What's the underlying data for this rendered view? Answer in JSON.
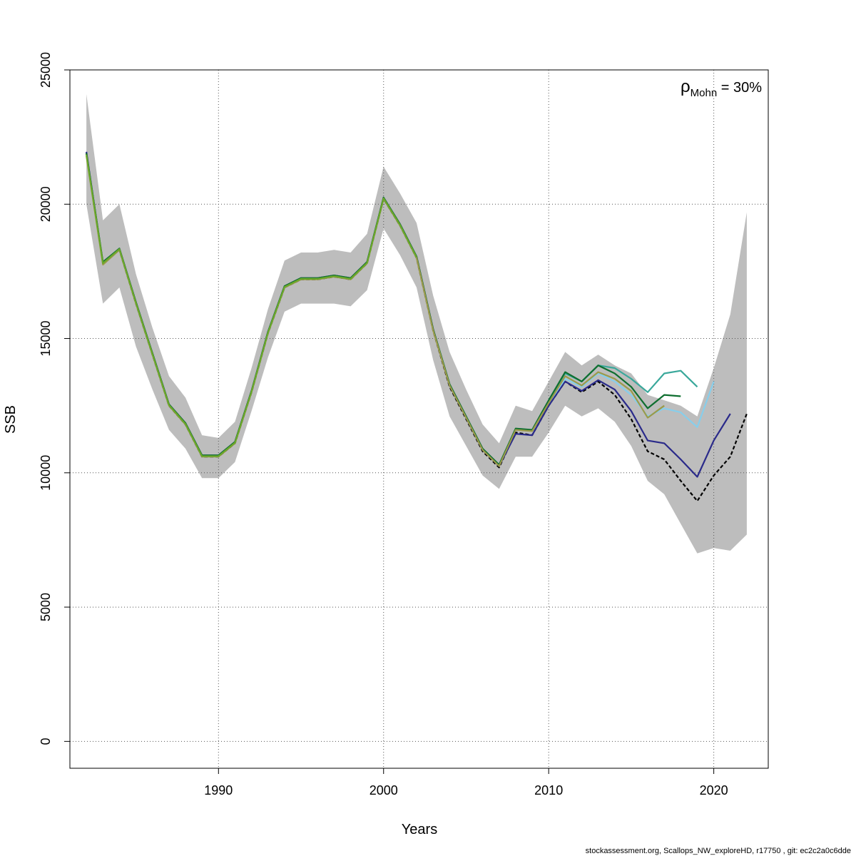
{
  "chart_data": {
    "type": "line",
    "title": "",
    "xlabel": "Years",
    "ylabel": "SSB",
    "xlim": [
      1981.0,
      2023.3
    ],
    "ylim": [
      -1000,
      25000
    ],
    "x_ticks": [
      1990,
      2000,
      2010,
      2020
    ],
    "y_ticks": [
      0,
      5000,
      10000,
      15000,
      20000,
      25000
    ],
    "grid": true,
    "annotation": {
      "symbol": "ρ",
      "subscript": "Mohn",
      "text": " = 30%",
      "placement": "top-right"
    },
    "confidence_band": {
      "years": [
        1982,
        1983,
        1984,
        1985,
        1986,
        1987,
        1988,
        1989,
        1990,
        1991,
        1992,
        1993,
        1994,
        1995,
        1996,
        1997,
        1998,
        1999,
        2000,
        2001,
        2002,
        2003,
        2004,
        2005,
        2006,
        2007,
        2008,
        2009,
        2010,
        2011,
        2012,
        2013,
        2014,
        2015,
        2016,
        2017,
        2018,
        2019,
        2020,
        2021,
        2022
      ],
      "lower": [
        20000,
        16300,
        16900,
        14700,
        13100,
        11600,
        10900,
        9800,
        9800,
        10400,
        12300,
        14300,
        16000,
        16300,
        16300,
        16300,
        16200,
        16800,
        19100,
        18100,
        16900,
        14200,
        12100,
        11000,
        9900,
        9400,
        10600,
        10600,
        11500,
        12500,
        12100,
        12400,
        11900,
        11000,
        9700,
        9200,
        8100,
        7000,
        7200,
        7100,
        7700
      ],
      "upper": [
        24100,
        19400,
        20000,
        17400,
        15400,
        13600,
        12800,
        11400,
        11300,
        11900,
        13900,
        16100,
        17900,
        18200,
        18200,
        18300,
        18200,
        18900,
        21400,
        20400,
        19300,
        16600,
        14500,
        13100,
        11800,
        11100,
        12500,
        12300,
        13400,
        14500,
        14000,
        14400,
        14000,
        13700,
        12900,
        12700,
        12500,
        12100,
        13900,
        15900,
        19700
      ]
    },
    "series": [
      {
        "color": "#000000",
        "style": "dashed",
        "years": [
          1982,
          1983,
          1984,
          1985,
          1986,
          1987,
          1988,
          1989,
          1990,
          1991,
          1992,
          1993,
          1994,
          1995,
          1996,
          1997,
          1998,
          1999,
          2000,
          2001,
          2002,
          2003,
          2004,
          2005,
          2006,
          2007,
          2008,
          2009,
          2010,
          2011,
          2012,
          2013,
          2014,
          2015,
          2016,
          2017,
          2018,
          2019,
          2020,
          2021,
          2022
        ],
        "values": [
          21900,
          17800,
          18300,
          16300,
          14400,
          12500,
          11800,
          10600,
          10600,
          11100,
          13000,
          15200,
          16900,
          17200,
          17200,
          17300,
          17200,
          17800,
          20200,
          19200,
          18000,
          15300,
          13200,
          12000,
          10800,
          10200,
          11500,
          11400,
          12500,
          13400,
          13000,
          13400,
          12900,
          12000,
          10800,
          10500,
          9700,
          8950,
          9900,
          10600,
          12200
        ]
      },
      {
        "color": "#2a2a8a",
        "style": "solid",
        "years": [
          1982,
          1983,
          1984,
          1985,
          1986,
          1987,
          1988,
          1989,
          1990,
          1991,
          1992,
          1993,
          1994,
          1995,
          1996,
          1997,
          1998,
          1999,
          2000,
          2001,
          2002,
          2003,
          2004,
          2005,
          2006,
          2007,
          2008,
          2009,
          2010,
          2011,
          2012,
          2013,
          2014,
          2015,
          2016,
          2017,
          2018,
          2019,
          2020,
          2021
        ],
        "values": [
          21950,
          17800,
          18350,
          16350,
          14450,
          12550,
          11850,
          10650,
          10650,
          11150,
          13050,
          15250,
          16950,
          17250,
          17250,
          17350,
          17250,
          17850,
          20250,
          19250,
          18050,
          15350,
          13250,
          12050,
          10850,
          10250,
          11450,
          11400,
          12500,
          13400,
          13050,
          13450,
          13100,
          12300,
          11200,
          11100,
          10500,
          9850,
          11200,
          12200
        ]
      },
      {
        "color": "#87ceeb",
        "style": "solid",
        "years": [
          2010,
          2011,
          2012,
          2013,
          2014,
          2015,
          2016,
          2017,
          2018,
          2019,
          2020
        ],
        "values": [
          12600,
          13500,
          13200,
          13700,
          13400,
          12900,
          12100,
          12400,
          12250,
          11700,
          13400
        ]
      },
      {
        "color": "#3aa89b",
        "style": "solid",
        "years": [
          2010,
          2011,
          2012,
          2013,
          2014,
          2015,
          2016,
          2017,
          2018,
          2019
        ],
        "values": [
          12700,
          13700,
          13400,
          14000,
          13900,
          13500,
          13000,
          13700,
          13800,
          13200
        ]
      },
      {
        "color": "#0e6e2f",
        "style": "solid",
        "years": [
          1982,
          1983,
          1984,
          1985,
          1986,
          1987,
          1988,
          1989,
          1990,
          1991,
          1992,
          1993,
          1994,
          1995,
          1996,
          1997,
          1998,
          1999,
          2000,
          2001,
          2002,
          2003,
          2004,
          2005,
          2006,
          2007,
          2008,
          2009,
          2010,
          2011,
          2012,
          2013,
          2014,
          2015,
          2016,
          2017,
          2018
        ],
        "values": [
          21900,
          17850,
          18350,
          16350,
          14450,
          12550,
          11850,
          10650,
          10650,
          11150,
          13050,
          15250,
          16950,
          17250,
          17250,
          17350,
          17250,
          17850,
          20250,
          19250,
          18050,
          15350,
          13300,
          12100,
          10900,
          10300,
          11650,
          11600,
          12700,
          13750,
          13400,
          14000,
          13700,
          13200,
          12400,
          12900,
          12850
        ]
      },
      {
        "color": "#9a9a4a",
        "style": "solid",
        "years": [
          1982,
          1983,
          1984,
          1985,
          1986,
          1987,
          1988,
          1989,
          1990,
          1991,
          1992,
          1993,
          1994,
          1995,
          1996,
          1997,
          1998,
          1999,
          2000,
          2001,
          2002,
          2003,
          2004,
          2005,
          2006,
          2007,
          2008,
          2009,
          2010,
          2011,
          2012,
          2013,
          2014,
          2015,
          2016,
          2017
        ],
        "values": [
          21800,
          17750,
          18300,
          16300,
          14400,
          12500,
          11800,
          10600,
          10600,
          11100,
          13000,
          15200,
          16900,
          17200,
          17200,
          17300,
          17200,
          17800,
          20200,
          19200,
          18000,
          15300,
          13250,
          12050,
          10850,
          10250,
          11600,
          11550,
          12600,
          13600,
          13250,
          13750,
          13500,
          13050,
          12050,
          12500
        ]
      },
      {
        "color": "#6aa82a",
        "style": "solid",
        "years": [
          1982,
          1983,
          1984,
          1985,
          1986,
          1987,
          1988,
          1989,
          1990,
          1991,
          1992,
          1993,
          1994,
          1995,
          1996,
          1997,
          1998,
          1999,
          2000,
          2001,
          2002
        ],
        "values": [
          21850,
          17800,
          18330,
          16320,
          14420,
          12520,
          11820,
          10620,
          10620,
          11120,
          13020,
          15220,
          16920,
          17220,
          17220,
          17320,
          17220,
          17820,
          20220,
          19220,
          18020
        ]
      }
    ]
  },
  "footer": "stockassessment.org, Scallops_NW_exploreHD, r17750 , git: ec2c2a0c6dde"
}
